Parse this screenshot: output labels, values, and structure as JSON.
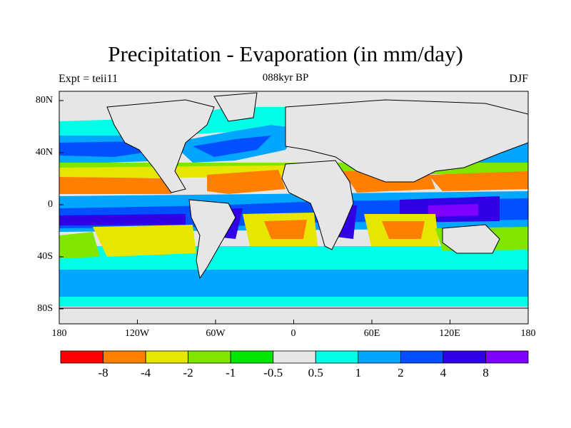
{
  "title": "Precipitation - Evaporation (in mm/day)",
  "subtitle": "088kyr BP",
  "left_string": "Expt = teii11",
  "right_string": "DJF",
  "y_ticks": [
    "80N",
    "40N",
    "0",
    "40S",
    "80S"
  ],
  "x_ticks": [
    "180",
    "120W",
    "60W",
    "0",
    "60E",
    "120E",
    "180"
  ],
  "colorbar": {
    "labels": [
      "-8",
      "-4",
      "-2",
      "-1",
      "-0.5",
      "0.5",
      "1",
      "2",
      "4",
      "8"
    ],
    "colors": [
      "#ff0000",
      "#ff8000",
      "#e6e600",
      "#80e600",
      "#00e600",
      "#e6e6e6",
      "#00ffe6",
      "#00a6ff",
      "#0050ff",
      "#3200e6",
      "#8000ff"
    ]
  },
  "map": {
    "land_color": "#e6e6e6",
    "coastline_color": "#000000"
  }
}
